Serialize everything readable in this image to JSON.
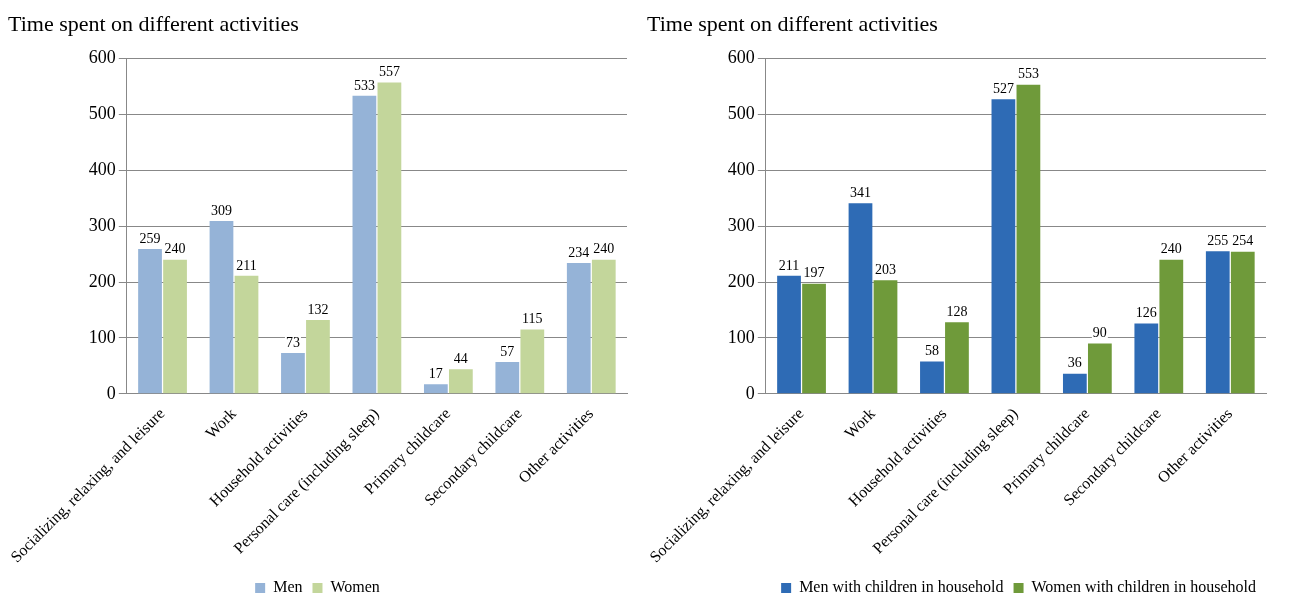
{
  "chart_data": [
    {
      "type": "bar",
      "title": "Time spent on different activities",
      "categories": [
        "Socializing, relaxing, and leisure",
        "Work",
        "Household activities",
        "Personal care (including sleep)",
        "Primary childcare",
        "Secondary childcare",
        "Other activities"
      ],
      "series": [
        {
          "name": "Men",
          "color": "#95b3d7",
          "values": [
            259,
            309,
            73,
            533,
            17,
            57,
            234
          ]
        },
        {
          "name": "Women",
          "color": "#c3d69b",
          "values": [
            240,
            211,
            132,
            557,
            44,
            115,
            240
          ]
        }
      ],
      "ylim": [
        0,
        600
      ],
      "yticks": [
        0,
        100,
        200,
        300,
        400,
        500,
        600
      ],
      "grid": "y",
      "legend": "bottom",
      "data_labels": true
    },
    {
      "type": "bar",
      "title": "Time spent on different activities",
      "categories": [
        "Socializing, relaxing, and leisure",
        "Work",
        "Household activities",
        "Personal care (including sleep)",
        "Primary childcare",
        "Secondary childcare",
        "Other activities"
      ],
      "series": [
        {
          "name": "Men with children in household",
          "color": "#2e6bb5",
          "values": [
            211,
            341,
            58,
            527,
            36,
            126,
            255
          ]
        },
        {
          "name": "Women with children in household",
          "color": "#6f9a3a",
          "values": [
            197,
            203,
            128,
            553,
            90,
            240,
            254
          ]
        }
      ],
      "ylim": [
        0,
        600
      ],
      "yticks": [
        0,
        100,
        200,
        300,
        400,
        500,
        600
      ],
      "grid": "y",
      "legend": "bottom right",
      "data_labels": true
    }
  ]
}
